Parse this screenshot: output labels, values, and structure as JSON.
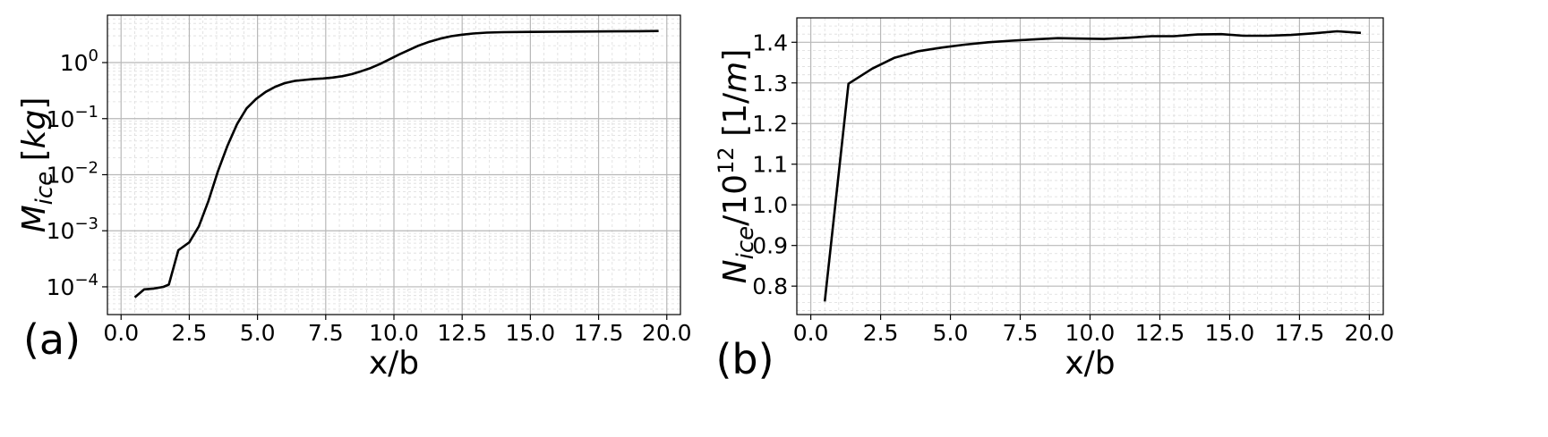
{
  "chart_data": [
    {
      "type": "line",
      "panel_label": "(a)",
      "xlabel": "x/b",
      "ylabel": {
        "base": "M",
        "sub": "ice",
        "unit": "kg"
      },
      "xlim": [
        -0.5,
        20.5
      ],
      "ylim": [
        3.2e-05,
        7.0
      ],
      "yscale": "log",
      "grid": true,
      "minor_grid": true,
      "xticks": [
        0.0,
        2.5,
        5.0,
        7.5,
        10.0,
        12.5,
        15.0,
        17.5,
        20.0
      ],
      "xtick_labels": [
        "0.0",
        "2.5",
        "5.0",
        "7.5",
        "10.0",
        "12.5",
        "15.0",
        "17.5",
        "20.0"
      ],
      "yticks": [
        0.0001,
        0.001,
        0.01,
        0.1,
        1
      ],
      "ytick_exponents": [
        "−4",
        "−3",
        "−2",
        "−1",
        "0"
      ],
      "line_color": "#000000",
      "series": [
        {
          "x": [
            0.5,
            0.85,
            1.2,
            1.55,
            1.75,
            2.1,
            2.5,
            2.85,
            3.2,
            3.55,
            3.9,
            4.25,
            4.6,
            4.95,
            5.3,
            5.65,
            6.0,
            6.35,
            6.7,
            7.05,
            7.4,
            7.75,
            8.1,
            8.45,
            8.8,
            9.15,
            9.5,
            9.85,
            10.2,
            10.55,
            10.9,
            11.3,
            11.7,
            12.1,
            12.5,
            12.9,
            13.4,
            14.0,
            15.0,
            16.0,
            17.0,
            18.0,
            19.0,
            19.7
          ],
          "y": [
            6.5e-05,
            9e-05,
            9.3e-05,
            0.0001,
            0.00011,
            0.00045,
            0.00062,
            0.0012,
            0.0034,
            0.0115,
            0.033,
            0.08,
            0.152,
            0.225,
            0.3,
            0.37,
            0.43,
            0.47,
            0.49,
            0.51,
            0.52,
            0.54,
            0.57,
            0.62,
            0.7,
            0.8,
            0.95,
            1.15,
            1.4,
            1.68,
            2.0,
            2.35,
            2.68,
            2.95,
            3.15,
            3.3,
            3.42,
            3.48,
            3.52,
            3.55,
            3.58,
            3.6,
            3.63,
            3.65
          ]
        }
      ]
    },
    {
      "type": "line",
      "panel_label": "(b)",
      "xlabel": "x/b",
      "ylabel": {
        "base": "N",
        "sub": "ice",
        "divisor": "10",
        "exponent": "12",
        "unit": "1/m"
      },
      "xlim": [
        -0.5,
        20.5
      ],
      "ylim": [
        0.73,
        1.46
      ],
      "yscale": "linear",
      "grid": true,
      "minor_grid": true,
      "xticks": [
        0.0,
        2.5,
        5.0,
        7.5,
        10.0,
        12.5,
        15.0,
        17.5,
        20.0
      ],
      "xtick_labels": [
        "0.0",
        "2.5",
        "5.0",
        "7.5",
        "10.0",
        "12.5",
        "15.0",
        "17.5",
        "20.0"
      ],
      "yticks": [
        0.8,
        0.9,
        1.0,
        1.1,
        1.2,
        1.3,
        1.4
      ],
      "ytick_labels": [
        "0.8",
        "0.9",
        "1.0",
        "1.1",
        "1.2",
        "1.3",
        "1.4"
      ],
      "line_color": "#000000",
      "series": [
        {
          "x": [
            0.5,
            1.35,
            2.2,
            3.0,
            3.85,
            4.7,
            5.5,
            6.35,
            7.2,
            8.0,
            8.85,
            9.7,
            10.5,
            11.35,
            12.2,
            13.0,
            13.85,
            14.7,
            15.5,
            16.35,
            17.2,
            18.0,
            18.85,
            19.7
          ],
          "y": [
            0.762,
            1.298,
            1.335,
            1.362,
            1.378,
            1.387,
            1.394,
            1.4,
            1.404,
            1.407,
            1.41,
            1.409,
            1.408,
            1.411,
            1.415,
            1.415,
            1.419,
            1.42,
            1.416,
            1.416,
            1.418,
            1.422,
            1.427,
            1.423
          ]
        }
      ]
    }
  ]
}
